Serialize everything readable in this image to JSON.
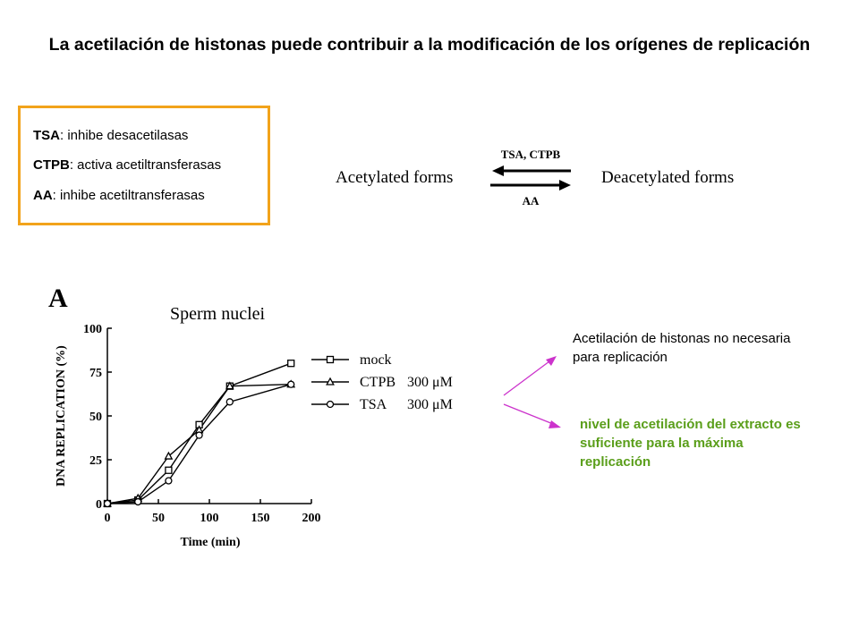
{
  "title": "La acetilación de histonas puede contribuir a la modificación de los orígenes de replicación",
  "legend": [
    {
      "abbr": "TSA",
      "desc": ": inhibe desacetilasas"
    },
    {
      "abbr": "CTPB",
      "desc": ": activa acetiltransferasas"
    },
    {
      "abbr": "AA",
      "desc": ": inhibe acetiltransferasas"
    }
  ],
  "reaction": {
    "left": "Acetylated forms",
    "right": "Deacetylated forms",
    "top_label": "TSA, CTPB",
    "bottom_label": "AA"
  },
  "notes": {
    "note1": "Acetilación de histonas no necesaria para replicación",
    "note2": "nivel de acetilación del extracto es suficiente para la máxima replicación"
  },
  "colors": {
    "box_border": "#f2a31b",
    "note2": "#5a9e1a",
    "arrow": "#cc33cc"
  },
  "chart_data": {
    "type": "line",
    "panel_label": "A",
    "title": "Sperm nuclei",
    "xlabel": "Time (min)",
    "ylabel": "DNA REPLICATION (%)",
    "xlim": [
      0,
      200
    ],
    "ylim": [
      0,
      100
    ],
    "xticks": [
      0,
      50,
      100,
      150,
      200
    ],
    "yticks": [
      0,
      25,
      50,
      75,
      100
    ],
    "series": [
      {
        "name": "mock",
        "marker": "square",
        "x": [
          0,
          30,
          60,
          90,
          120,
          180
        ],
        "y": [
          0,
          2,
          19,
          45,
          67,
          80
        ]
      },
      {
        "name": "CTPB",
        "conc": "300 μM",
        "marker": "triangle",
        "x": [
          0,
          30,
          60,
          90,
          120,
          180
        ],
        "y": [
          0,
          3,
          27,
          42,
          67,
          68
        ]
      },
      {
        "name": "TSA",
        "conc": "300 μM",
        "marker": "circle",
        "x": [
          0,
          30,
          60,
          90,
          120,
          180
        ],
        "y": [
          0,
          1,
          13,
          39,
          58,
          68
        ]
      }
    ]
  }
}
